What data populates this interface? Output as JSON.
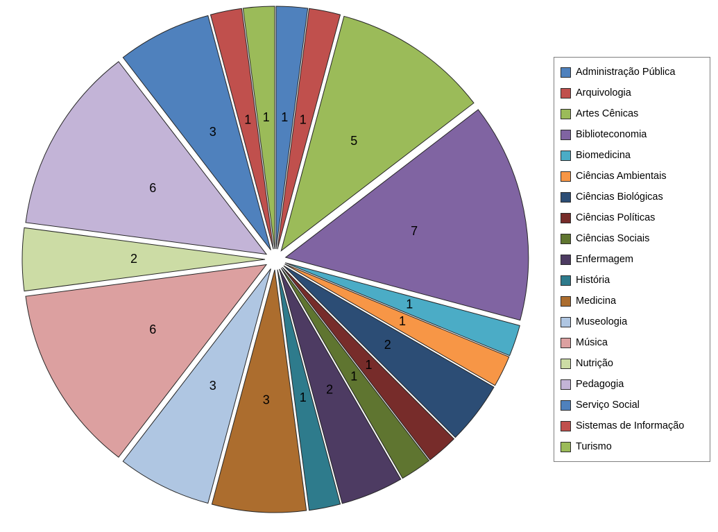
{
  "chart_data": {
    "type": "pie",
    "style": "exploded",
    "title": "",
    "legend_position": "right",
    "total": 48,
    "categories": [
      "Administração Pública",
      "Arquivologia",
      "Artes Cênicas",
      "Biblioteconomia",
      "Biomedicina",
      "Ciências Ambientais",
      "Ciências Biológicas",
      "Ciências Políticas",
      "Ciências Sociais",
      "Enfermagem",
      "História",
      "Medicina",
      "Museologia",
      "Música",
      "Nutrição",
      "Pedagogia",
      "Serviço Social",
      "Sistemas de Informação",
      "Turismo"
    ],
    "values": [
      1,
      1,
      5,
      7,
      1,
      1,
      2,
      1,
      1,
      2,
      1,
      3,
      3,
      6,
      2,
      6,
      3,
      1,
      1
    ],
    "colors": [
      "#4F81BD",
      "#C0504D",
      "#9BBB59",
      "#8064A2",
      "#4BACC6",
      "#F79646",
      "#2C4D75",
      "#772C2A",
      "#5F7530",
      "#4D3B62",
      "#2E7B8C",
      "#AC6D2E",
      "#AFC6E2",
      "#DCA0A0",
      "#CCDCA5",
      "#C3B4D7",
      "#4F81BD",
      "#C0504D",
      "#9BBB59"
    ],
    "data_labels": [
      "1",
      "1",
      "5",
      "7",
      "1",
      "1",
      "2",
      "1",
      "1",
      "2",
      "1",
      "3",
      "3",
      "6",
      "2",
      "6",
      "3",
      "1",
      "1"
    ],
    "slice_border_color": "#262626",
    "background_color": "#FFFFFF",
    "start_angle_deg": 0,
    "direction": "clockwise"
  }
}
